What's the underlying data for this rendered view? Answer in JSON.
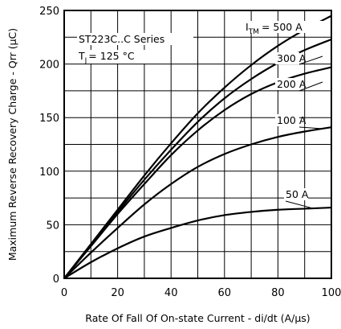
{
  "chart_data": {
    "type": "line",
    "xlabel": "Rate Of Fall Of On-state Current - di/dt (A/µs)",
    "ylabel": "Maximum Reverse Recovery Charge - Qrr (µC)",
    "xlim": [
      0,
      100
    ],
    "ylim": [
      0,
      250
    ],
    "xticks": [
      0,
      20,
      40,
      60,
      80,
      100
    ],
    "yticks": [
      0,
      50,
      100,
      150,
      200,
      250
    ],
    "grid": true,
    "annotations": {
      "series_title": "ST223C..C Series",
      "tj_prefix": "T",
      "tj_sub": "J",
      "tj_value": "= 125 °C",
      "itm_prefix": "I",
      "itm_sub": "TM"
    },
    "series": [
      {
        "name": "= 500 A",
        "x": [
          0,
          10,
          20,
          30,
          40,
          50,
          60,
          70,
          80,
          90,
          100
        ],
        "y": [
          0,
          32,
          64,
          96,
          126,
          154,
          178,
          199,
          217,
          232,
          245
        ]
      },
      {
        "name": "300 A",
        "x": [
          0,
          10,
          20,
          30,
          40,
          50,
          60,
          70,
          80,
          90,
          100
        ],
        "y": [
          0,
          31,
          62,
          92,
          120,
          146,
          168,
          186,
          201,
          213,
          223
        ]
      },
      {
        "name": "200 A",
        "x": [
          0,
          10,
          20,
          30,
          40,
          50,
          60,
          70,
          80,
          90,
          100
        ],
        "y": [
          0,
          30,
          60,
          88,
          115,
          138,
          157,
          172,
          183,
          191,
          197
        ]
      },
      {
        "name": "100 A",
        "x": [
          0,
          10,
          20,
          30,
          40,
          50,
          60,
          70,
          80,
          90,
          100
        ],
        "y": [
          0,
          24,
          47,
          69,
          88,
          104,
          116,
          125,
          132,
          137,
          141
        ]
      },
      {
        "name": "50 A",
        "x": [
          0,
          10,
          20,
          30,
          40,
          50,
          60,
          70,
          80,
          90,
          100
        ],
        "y": [
          0,
          15,
          28,
          39,
          47,
          54,
          59,
          62,
          64,
          65,
          66
        ]
      }
    ]
  }
}
